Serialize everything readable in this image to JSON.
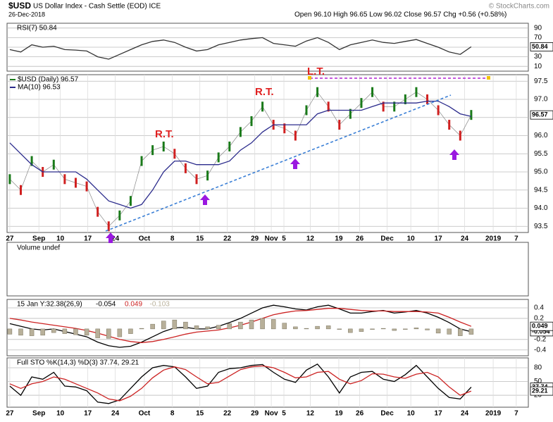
{
  "header": {
    "symbol": "$USD",
    "name": "US Dollar Index - Cash Settle (EOD) ICE",
    "date": "26-Dec-2018",
    "ohlc": "Open 96.10 High 96.65 Low 96.02 Close 96.57 Chg +0.56 (+0.58%)",
    "source": "© StockCharts.com"
  },
  "volume_panel": {
    "title": "Volume undef"
  },
  "chart_data": [
    {
      "type": "line",
      "title": "RSI(7) 50.84",
      "x": [
        0,
        2,
        4,
        6,
        8,
        10,
        12,
        14,
        16,
        18,
        20,
        22,
        24,
        26,
        28,
        30,
        32,
        34,
        36,
        38,
        40,
        42,
        44,
        46,
        48,
        50,
        52,
        54,
        56,
        58,
        60,
        62,
        64,
        66,
        68,
        70,
        72,
        74,
        76,
        78,
        80,
        82,
        84
      ],
      "xlim": [
        -0.5,
        94.4
      ],
      "ylim": [
        0,
        100
      ],
      "yticks": [
        90,
        70,
        50,
        30,
        10
      ],
      "series": [
        {
          "color": "#333333",
          "end_label": "50.84",
          "values": [
            45,
            40,
            55,
            50,
            52,
            45,
            44,
            42,
            30,
            25,
            35,
            45,
            55,
            62,
            65,
            60,
            50,
            42,
            45,
            55,
            60,
            65,
            68,
            70,
            58,
            55,
            52,
            63,
            70,
            60,
            45,
            55,
            60,
            65,
            60,
            58,
            62,
            66,
            58,
            50,
            40,
            35,
            50.84
          ]
        }
      ]
    },
    {
      "type": "line",
      "annotations": [
        "R.T.",
        "R.T.",
        "L.T."
      ],
      "x": [
        0,
        2,
        4,
        6,
        8,
        10,
        12,
        14,
        16,
        18,
        20,
        22,
        24,
        26,
        28,
        30,
        32,
        34,
        36,
        38,
        40,
        42,
        44,
        46,
        48,
        50,
        52,
        54,
        56,
        58,
        60,
        62,
        64,
        66,
        68,
        70,
        72,
        74,
        76,
        78,
        80,
        82,
        84
      ],
      "xlim": [
        -0.5,
        94.4
      ],
      "ylim": [
        93.33,
        97.68
      ],
      "yticks": [
        97.5,
        {
          "value": 97,
          "label": "97.0"
        },
        96.5,
        {
          "value": 96,
          "label": "96.0"
        },
        95.5,
        {
          "value": 95,
          "label": "95.0"
        },
        94.5,
        {
          "value": 94,
          "label": "94.0"
        },
        93.5
      ],
      "xticks": [
        {
          "value": 0,
          "label": "27"
        },
        {
          "value": 5.3,
          "label": "Sep"
        },
        {
          "value": 9.2,
          "label": "10"
        },
        {
          "value": 14.2,
          "label": "17"
        },
        {
          "value": 19.2,
          "label": "24"
        },
        {
          "value": 24.5,
          "label": "Oct"
        },
        {
          "value": 29.6,
          "label": "8"
        },
        {
          "value": 34.6,
          "label": "15"
        },
        {
          "value": 39.6,
          "label": "22"
        },
        {
          "value": 44.6,
          "label": "29"
        },
        {
          "value": 47.6,
          "label": "Nov"
        },
        {
          "value": 49.9,
          "label": "5"
        },
        {
          "value": 54.7,
          "label": "12"
        },
        {
          "value": 59.9,
          "label": "19"
        },
        {
          "value": 63.7,
          "label": "26"
        },
        {
          "value": 68.7,
          "label": "Dec"
        },
        {
          "value": 73,
          "label": "10"
        },
        {
          "value": 78,
          "label": "17"
        },
        {
          "value": 82.8,
          "label": "24"
        },
        {
          "value": 88,
          "label": "2019"
        },
        {
          "value": 92.2,
          "label": "7"
        }
      ],
      "series": [
        {
          "name": "$USD (Daily) 96.57",
          "style": "ticks",
          "color": "#1a7a1a",
          "end_label": "96.57",
          "values": [
            94.8,
            94.5,
            95.3,
            95.0,
            95.2,
            94.8,
            94.7,
            94.6,
            93.9,
            93.5,
            93.8,
            94.2,
            95.3,
            95.6,
            95.7,
            95.5,
            95.1,
            94.8,
            94.9,
            95.4,
            95.7,
            96.1,
            96.4,
            96.8,
            96.3,
            96.2,
            96.0,
            96.7,
            97.2,
            96.8,
            96.3,
            96.6,
            96.9,
            97.2,
            96.8,
            96.8,
            97.0,
            97.2,
            97.0,
            96.7,
            96.3,
            96.0,
            96.57
          ]
        },
        {
          "name": "MA(10) 96.53",
          "color": "#2b2b8c",
          "values": [
            95.8,
            95.5,
            95.2,
            95.0,
            95.0,
            95.0,
            95.0,
            94.8,
            94.5,
            94.2,
            94.1,
            94.0,
            94.1,
            94.5,
            95.0,
            95.3,
            95.3,
            95.2,
            95.2,
            95.2,
            95.3,
            95.6,
            95.8,
            96.1,
            96.3,
            96.3,
            96.3,
            96.3,
            96.6,
            96.7,
            96.7,
            96.7,
            96.7,
            96.8,
            96.9,
            96.9,
            96.9,
            96.9,
            96.95,
            96.95,
            96.8,
            96.6,
            96.53
          ]
        }
      ]
    },
    {
      "type": "line",
      "title": "15 Jan Y:32.38(26,9)",
      "x": [
        0,
        2,
        4,
        6,
        8,
        10,
        12,
        14,
        16,
        18,
        20,
        22,
        24,
        26,
        28,
        30,
        32,
        34,
        36,
        38,
        40,
        42,
        44,
        46,
        48,
        50,
        52,
        54,
        56,
        58,
        60,
        62,
        64,
        66,
        68,
        70,
        72,
        74,
        76,
        78,
        80,
        82,
        84
      ],
      "xlim": [
        -0.5,
        94.4
      ],
      "ylim": [
        -0.51,
        0.56
      ],
      "yticks": [
        0.4,
        0.2,
        -0.2,
        -0.4
      ],
      "series": [
        {
          "name": "-0.054",
          "color": "#000000",
          "end_label": "-0.054",
          "values": [
            0.1,
            0.05,
            0.0,
            -0.02,
            0.0,
            -0.05,
            -0.1,
            -0.15,
            -0.25,
            -0.32,
            -0.35,
            -0.33,
            -0.25,
            -0.15,
            -0.05,
            0.02,
            0.03,
            0.0,
            0.0,
            0.05,
            0.12,
            0.2,
            0.3,
            0.4,
            0.45,
            0.42,
            0.38,
            0.36,
            0.42,
            0.45,
            0.38,
            0.3,
            0.3,
            0.33,
            0.35,
            0.3,
            0.32,
            0.35,
            0.3,
            0.22,
            0.12,
            0.0,
            -0.054
          ]
        },
        {
          "name": "0.049",
          "color": "#cc2222",
          "end_label": "0.049",
          "values": [
            0.2,
            0.17,
            0.13,
            0.1,
            0.07,
            0.04,
            0.01,
            -0.03,
            -0.08,
            -0.14,
            -0.2,
            -0.24,
            -0.26,
            -0.24,
            -0.2,
            -0.15,
            -0.1,
            -0.06,
            -0.04,
            -0.02,
            0.02,
            0.07,
            0.13,
            0.2,
            0.27,
            0.31,
            0.34,
            0.35,
            0.37,
            0.39,
            0.39,
            0.37,
            0.35,
            0.34,
            0.34,
            0.33,
            0.33,
            0.33,
            0.32,
            0.3,
            0.22,
            0.13,
            0.049
          ]
        },
        {
          "name": "-0.103",
          "style": "bars",
          "color": "#b8b09a",
          "values": [
            -0.1,
            -0.12,
            -0.13,
            -0.12,
            -0.07,
            -0.09,
            -0.11,
            -0.12,
            -0.17,
            -0.18,
            -0.15,
            -0.09,
            0.01,
            0.09,
            0.15,
            0.17,
            0.13,
            0.06,
            0.04,
            0.07,
            0.1,
            0.13,
            0.17,
            0.2,
            0.18,
            0.11,
            0.04,
            0.01,
            0.05,
            0.06,
            -0.01,
            -0.07,
            -0.05,
            -0.01,
            0.01,
            -0.03,
            -0.01,
            0.02,
            -0.02,
            -0.08,
            -0.1,
            -0.13,
            -0.103
          ]
        }
      ]
    },
    {
      "type": "line",
      "title": "Full STO %K(14,3) %D(3) 37.74, 29.21",
      "x": [
        0,
        2,
        4,
        6,
        8,
        10,
        12,
        14,
        16,
        18,
        20,
        22,
        24,
        26,
        28,
        30,
        32,
        34,
        36,
        38,
        40,
        42,
        44,
        46,
        48,
        50,
        52,
        54,
        56,
        58,
        60,
        62,
        64,
        66,
        68,
        70,
        72,
        74,
        76,
        78,
        80,
        82,
        84
      ],
      "xlim": [
        -0.5,
        94.4
      ],
      "ylim": [
        -6,
        101.5
      ],
      "yticks": [
        80,
        50,
        20
      ],
      "xticks": [
        {
          "value": 0,
          "label": "27"
        },
        {
          "value": 5.3,
          "label": "Sep"
        },
        {
          "value": 9.2,
          "label": "10"
        },
        {
          "value": 14.2,
          "label": "17"
        },
        {
          "value": 19.2,
          "label": "24"
        },
        {
          "value": 24.5,
          "label": "Oct"
        },
        {
          "value": 29.6,
          "label": "8"
        },
        {
          "value": 34.6,
          "label": "15"
        },
        {
          "value": 39.6,
          "label": "22"
        },
        {
          "value": 44.6,
          "label": "29"
        },
        {
          "value": 47.6,
          "label": "Nov"
        },
        {
          "value": 49.9,
          "label": "5"
        },
        {
          "value": 54.7,
          "label": "12"
        },
        {
          "value": 59.9,
          "label": "19"
        },
        {
          "value": 63.7,
          "label": "26"
        },
        {
          "value": 68.7,
          "label": "Dec"
        },
        {
          "value": 73,
          "label": "10"
        },
        {
          "value": 78,
          "label": "17"
        },
        {
          "value": 82.8,
          "label": "24"
        },
        {
          "value": 88,
          "label": "2019"
        },
        {
          "value": 92.2,
          "label": "7"
        }
      ],
      "series": [
        {
          "color": "#000000",
          "end_label": "37.74",
          "values": [
            40,
            20,
            60,
            55,
            70,
            40,
            38,
            30,
            5,
            2,
            10,
            35,
            60,
            80,
            85,
            82,
            60,
            35,
            40,
            70,
            78,
            80,
            85,
            87,
            70,
            55,
            48,
            75,
            88,
            60,
            25,
            60,
            70,
            72,
            55,
            50,
            65,
            85,
            60,
            35,
            15,
            12,
            37.74
          ]
        },
        {
          "color": "#cc2222",
          "end_label": "29.21",
          "values": [
            45,
            35,
            45,
            50,
            60,
            55,
            45,
            35,
            25,
            12,
            8,
            18,
            35,
            58,
            75,
            82,
            76,
            60,
            45,
            48,
            62,
            76,
            82,
            84,
            80,
            70,
            58,
            60,
            70,
            72,
            55,
            45,
            52,
            67,
            66,
            60,
            57,
            66,
            70,
            60,
            38,
            20,
            29.21
          ]
        }
      ]
    }
  ]
}
